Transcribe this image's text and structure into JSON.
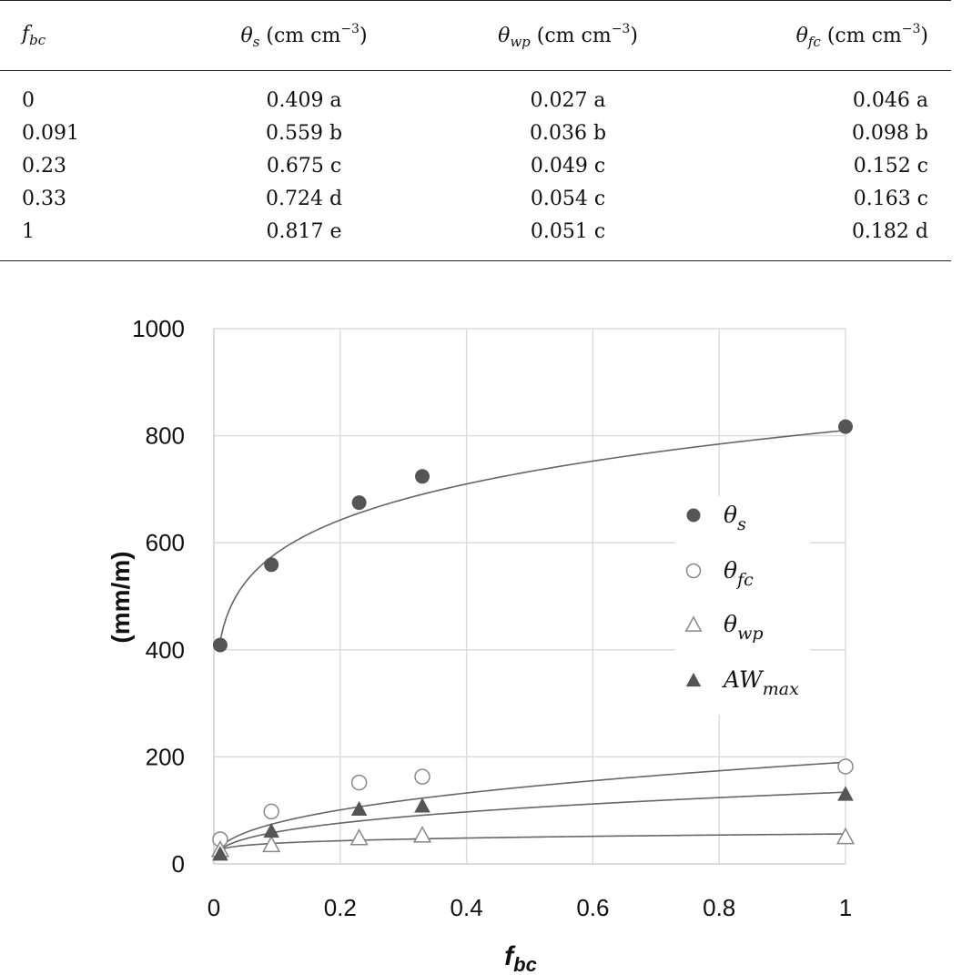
{
  "table": {
    "headers": [
      {
        "var": "f",
        "sub": "bc",
        "unit": ""
      },
      {
        "var": "θ",
        "sub": "s",
        "unit": " (cm cm",
        "sup": "−3",
        "close": ")"
      },
      {
        "var": "θ",
        "sub": "wp",
        "unit": " (cm cm",
        "sup": "−3",
        "close": ")"
      },
      {
        "var": "θ",
        "sub": "fc",
        "unit": " (cm cm",
        "sup": "−3",
        "close": ")"
      }
    ],
    "rows": [
      [
        "0",
        "0.409 a",
        "0.027 a",
        "0.046 a"
      ],
      [
        "0.091",
        "0.559 b",
        "0.036 b",
        "0.098 b"
      ],
      [
        "0.23",
        "0.675 c",
        "0.049 c",
        "0.152 c"
      ],
      [
        "0.33",
        "0.724 d",
        "0.054 c",
        "0.163 c"
      ],
      [
        "1",
        "0.817 e",
        "0.051 c",
        "0.182 d"
      ]
    ]
  },
  "chart_data": {
    "type": "scatter",
    "ylabel": "(mm/m)",
    "xlabel": "f",
    "xlabel_sub": "bc",
    "xlim": [
      0,
      1
    ],
    "ylim": [
      0,
      1000
    ],
    "x_ticks": [
      "0",
      "0.2",
      "0.4",
      "0.6",
      "0.8",
      "1"
    ],
    "y_ticks": [
      "0",
      "200",
      "400",
      "600",
      "800",
      "1000"
    ],
    "grid": true,
    "legend_position": "right",
    "series": [
      {
        "name": "θ",
        "name_sub": "s",
        "marker": "filled-circle",
        "color": "#555555",
        "x": [
          0.01,
          0.091,
          0.23,
          0.33,
          1
        ],
        "y": [
          409,
          559,
          675,
          724,
          817
        ],
        "trend": {
          "kind": "power",
          "a": 810,
          "b": 0.144
        }
      },
      {
        "name": "θ",
        "name_sub": "fc",
        "marker": "open-circle",
        "color": "#888888",
        "x": [
          0.01,
          0.091,
          0.23,
          0.33,
          1
        ],
        "y": [
          46,
          98,
          152,
          163,
          182
        ],
        "trend": {
          "kind": "power",
          "a": 190,
          "b": 0.393
        }
      },
      {
        "name": "θ",
        "name_sub": "wp",
        "marker": "open-triangle",
        "color": "#888888",
        "x": [
          0.01,
          0.091,
          0.23,
          0.33,
          1
        ],
        "y": [
          27,
          36,
          49,
          54,
          51
        ],
        "trend": {
          "kind": "power",
          "a": 56,
          "b": 0.16
        }
      },
      {
        "name": "AW",
        "name_sub": "max",
        "marker": "filled-triangle",
        "color": "#555555",
        "x": [
          0.01,
          0.091,
          0.23,
          0.33,
          1
        ],
        "y": [
          19,
          62,
          103,
          109,
          131
        ],
        "trend": {
          "kind": "power",
          "a": 134,
          "b": 0.35
        }
      }
    ]
  }
}
